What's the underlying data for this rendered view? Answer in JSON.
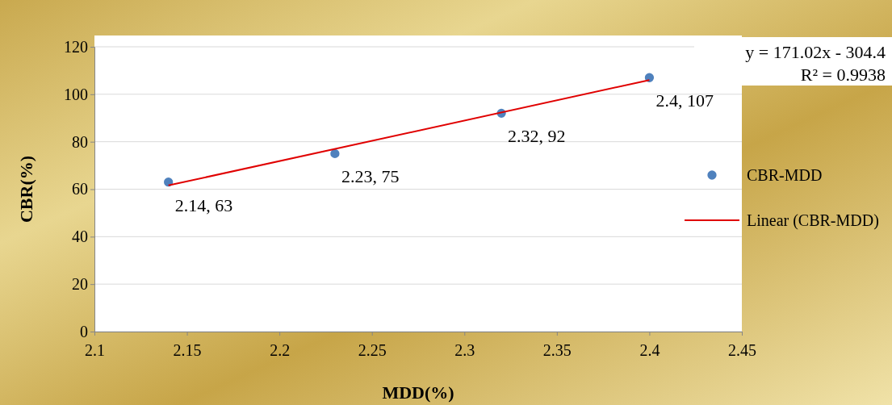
{
  "chart_data": {
    "type": "scatter",
    "xlabel": "MDD(%)",
    "ylabel": "CBR(%)",
    "xlim": [
      2.1,
      2.45
    ],
    "xticks": [
      2.1,
      2.15,
      2.2,
      2.25,
      2.3,
      2.35,
      2.4,
      2.45
    ],
    "ylim": [
      0,
      120
    ],
    "yticks": [
      0,
      20,
      40,
      60,
      80,
      100,
      120
    ],
    "grid": "y",
    "legend": "right",
    "series": [
      {
        "name": "CBR-MDD",
        "marker": "circle",
        "color": "#4f81bd",
        "x": [
          2.14,
          2.23,
          2.32,
          2.4
        ],
        "values": [
          63,
          75,
          92,
          107
        ],
        "value_labels": [
          "2.14, 63",
          "2.23, 75",
          "2.32, 92",
          "2.4, 107"
        ]
      },
      {
        "name": "Linear (CBR-MDD)",
        "type": "line",
        "marker": "none",
        "color": "#e00000",
        "x": [
          2.14,
          2.4
        ],
        "values": [
          61.6,
          106.0
        ]
      }
    ],
    "annotations": [
      "y = 171.02x - 304.4",
      "R² = 0.9938"
    ]
  }
}
